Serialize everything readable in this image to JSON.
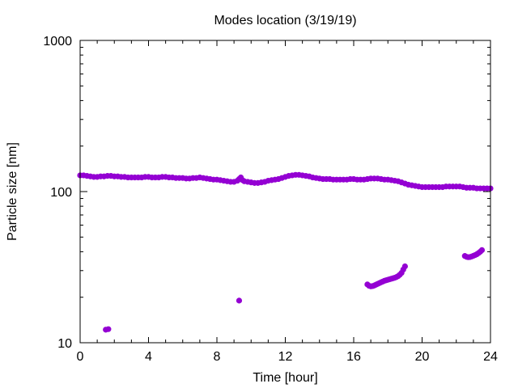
{
  "chart_data": {
    "type": "scatter",
    "title": "Modes location (3/19/19)",
    "xlabel": "Time [hour]",
    "ylabel": "Particle size [nm]",
    "xlim": [
      0,
      24
    ],
    "ylim": [
      10,
      1000
    ],
    "yscale": "log",
    "grid": false,
    "marker_color": "#9400D3",
    "x_ticks": [
      0,
      4,
      8,
      12,
      16,
      20,
      24
    ],
    "x_tick_labels": [
      "0",
      "4",
      "8",
      "12",
      "16",
      "20",
      "24"
    ],
    "y_ticks": [
      10,
      100,
      1000
    ],
    "y_tick_labels": [
      "10",
      "100",
      "1000"
    ],
    "series": [
      {
        "points": [
          [
            0.0,
            128
          ],
          [
            0.2,
            128
          ],
          [
            0.4,
            127
          ],
          [
            0.6,
            126
          ],
          [
            0.8,
            125
          ],
          [
            1.0,
            125
          ],
          [
            1.2,
            126
          ],
          [
            1.4,
            126
          ],
          [
            1.6,
            127
          ],
          [
            1.8,
            127
          ],
          [
            2.0,
            126
          ],
          [
            2.2,
            126
          ],
          [
            2.4,
            125
          ],
          [
            2.6,
            125
          ],
          [
            2.8,
            124
          ],
          [
            3.0,
            124
          ],
          [
            3.2,
            124
          ],
          [
            3.4,
            124
          ],
          [
            3.6,
            124
          ],
          [
            3.8,
            125
          ],
          [
            4.0,
            125
          ],
          [
            4.2,
            124
          ],
          [
            4.4,
            124
          ],
          [
            4.6,
            124
          ],
          [
            4.8,
            125
          ],
          [
            5.0,
            125
          ],
          [
            5.2,
            124
          ],
          [
            5.4,
            124
          ],
          [
            5.6,
            123
          ],
          [
            5.8,
            123
          ],
          [
            6.0,
            123
          ],
          [
            6.2,
            122
          ],
          [
            6.4,
            122
          ],
          [
            6.6,
            123
          ],
          [
            6.8,
            123
          ],
          [
            7.0,
            124
          ],
          [
            7.2,
            123
          ],
          [
            7.4,
            122
          ],
          [
            7.6,
            121
          ],
          [
            7.8,
            120
          ],
          [
            8.0,
            120
          ],
          [
            8.2,
            119
          ],
          [
            8.4,
            118
          ],
          [
            8.6,
            117
          ],
          [
            8.8,
            116
          ],
          [
            9.0,
            116
          ],
          [
            9.2,
            118
          ],
          [
            9.3,
            121
          ],
          [
            9.4,
            124
          ],
          [
            9.5,
            119
          ],
          [
            9.6,
            117
          ],
          [
            9.8,
            116
          ],
          [
            10.0,
            115
          ],
          [
            10.2,
            114
          ],
          [
            10.4,
            114
          ],
          [
            10.6,
            115
          ],
          [
            10.8,
            116
          ],
          [
            11.0,
            118
          ],
          [
            11.2,
            119
          ],
          [
            11.4,
            120
          ],
          [
            11.6,
            121
          ],
          [
            11.8,
            123
          ],
          [
            12.0,
            125
          ],
          [
            12.2,
            127
          ],
          [
            12.4,
            128
          ],
          [
            12.6,
            129
          ],
          [
            12.8,
            129
          ],
          [
            13.0,
            128
          ],
          [
            13.2,
            127
          ],
          [
            13.4,
            126
          ],
          [
            13.6,
            124
          ],
          [
            13.8,
            123
          ],
          [
            14.0,
            122
          ],
          [
            14.2,
            121
          ],
          [
            14.4,
            121
          ],
          [
            14.6,
            121
          ],
          [
            14.8,
            120
          ],
          [
            15.0,
            120
          ],
          [
            15.2,
            120
          ],
          [
            15.4,
            120
          ],
          [
            15.6,
            120
          ],
          [
            15.8,
            121
          ],
          [
            16.0,
            121
          ],
          [
            16.2,
            120
          ],
          [
            16.4,
            120
          ],
          [
            16.6,
            120
          ],
          [
            16.8,
            121
          ],
          [
            17.0,
            122
          ],
          [
            17.2,
            122
          ],
          [
            17.4,
            122
          ],
          [
            17.6,
            121
          ],
          [
            17.8,
            120
          ],
          [
            18.0,
            120
          ],
          [
            18.2,
            119
          ],
          [
            18.4,
            118
          ],
          [
            18.6,
            117
          ],
          [
            18.8,
            115
          ],
          [
            19.0,
            113
          ],
          [
            19.2,
            111
          ],
          [
            19.4,
            110
          ],
          [
            19.6,
            109
          ],
          [
            19.8,
            108
          ],
          [
            20.0,
            107
          ],
          [
            20.2,
            107
          ],
          [
            20.4,
            107
          ],
          [
            20.6,
            107
          ],
          [
            20.8,
            107
          ],
          [
            21.0,
            107
          ],
          [
            21.2,
            107
          ],
          [
            21.4,
            108
          ],
          [
            21.6,
            108
          ],
          [
            21.8,
            108
          ],
          [
            22.0,
            108
          ],
          [
            22.2,
            108
          ],
          [
            22.4,
            107
          ],
          [
            22.6,
            106
          ],
          [
            22.8,
            106
          ],
          [
            23.0,
            106
          ],
          [
            23.2,
            105
          ],
          [
            23.4,
            105
          ],
          [
            23.6,
            105
          ],
          [
            23.8,
            105
          ],
          [
            24.0,
            105
          ],
          [
            1.5,
            12.2
          ],
          [
            1.65,
            12.3
          ],
          [
            9.3,
            19
          ],
          [
            16.8,
            24.3
          ],
          [
            16.9,
            23.8
          ],
          [
            17.0,
            23.6
          ],
          [
            17.1,
            23.7
          ],
          [
            17.2,
            23.9
          ],
          [
            17.3,
            24.2
          ],
          [
            17.4,
            24.5
          ],
          [
            17.5,
            24.8
          ],
          [
            17.6,
            25.1
          ],
          [
            17.7,
            25.4
          ],
          [
            17.8,
            25.7
          ],
          [
            17.9,
            25.9
          ],
          [
            18.0,
            26.1
          ],
          [
            18.1,
            26.3
          ],
          [
            18.2,
            26.5
          ],
          [
            18.3,
            26.7
          ],
          [
            18.4,
            26.9
          ],
          [
            18.5,
            27.2
          ],
          [
            18.6,
            27.6
          ],
          [
            18.7,
            28.2
          ],
          [
            18.8,
            29.0
          ],
          [
            18.9,
            30.5
          ],
          [
            19.0,
            32.0
          ],
          [
            22.5,
            37.5
          ],
          [
            22.6,
            37.0
          ],
          [
            22.7,
            36.8
          ],
          [
            22.8,
            36.9
          ],
          [
            22.9,
            37.2
          ],
          [
            23.0,
            37.6
          ],
          [
            23.1,
            38.0
          ],
          [
            23.2,
            38.5
          ],
          [
            23.3,
            39.2
          ],
          [
            23.4,
            40.0
          ],
          [
            23.5,
            41.0
          ]
        ]
      }
    ]
  }
}
